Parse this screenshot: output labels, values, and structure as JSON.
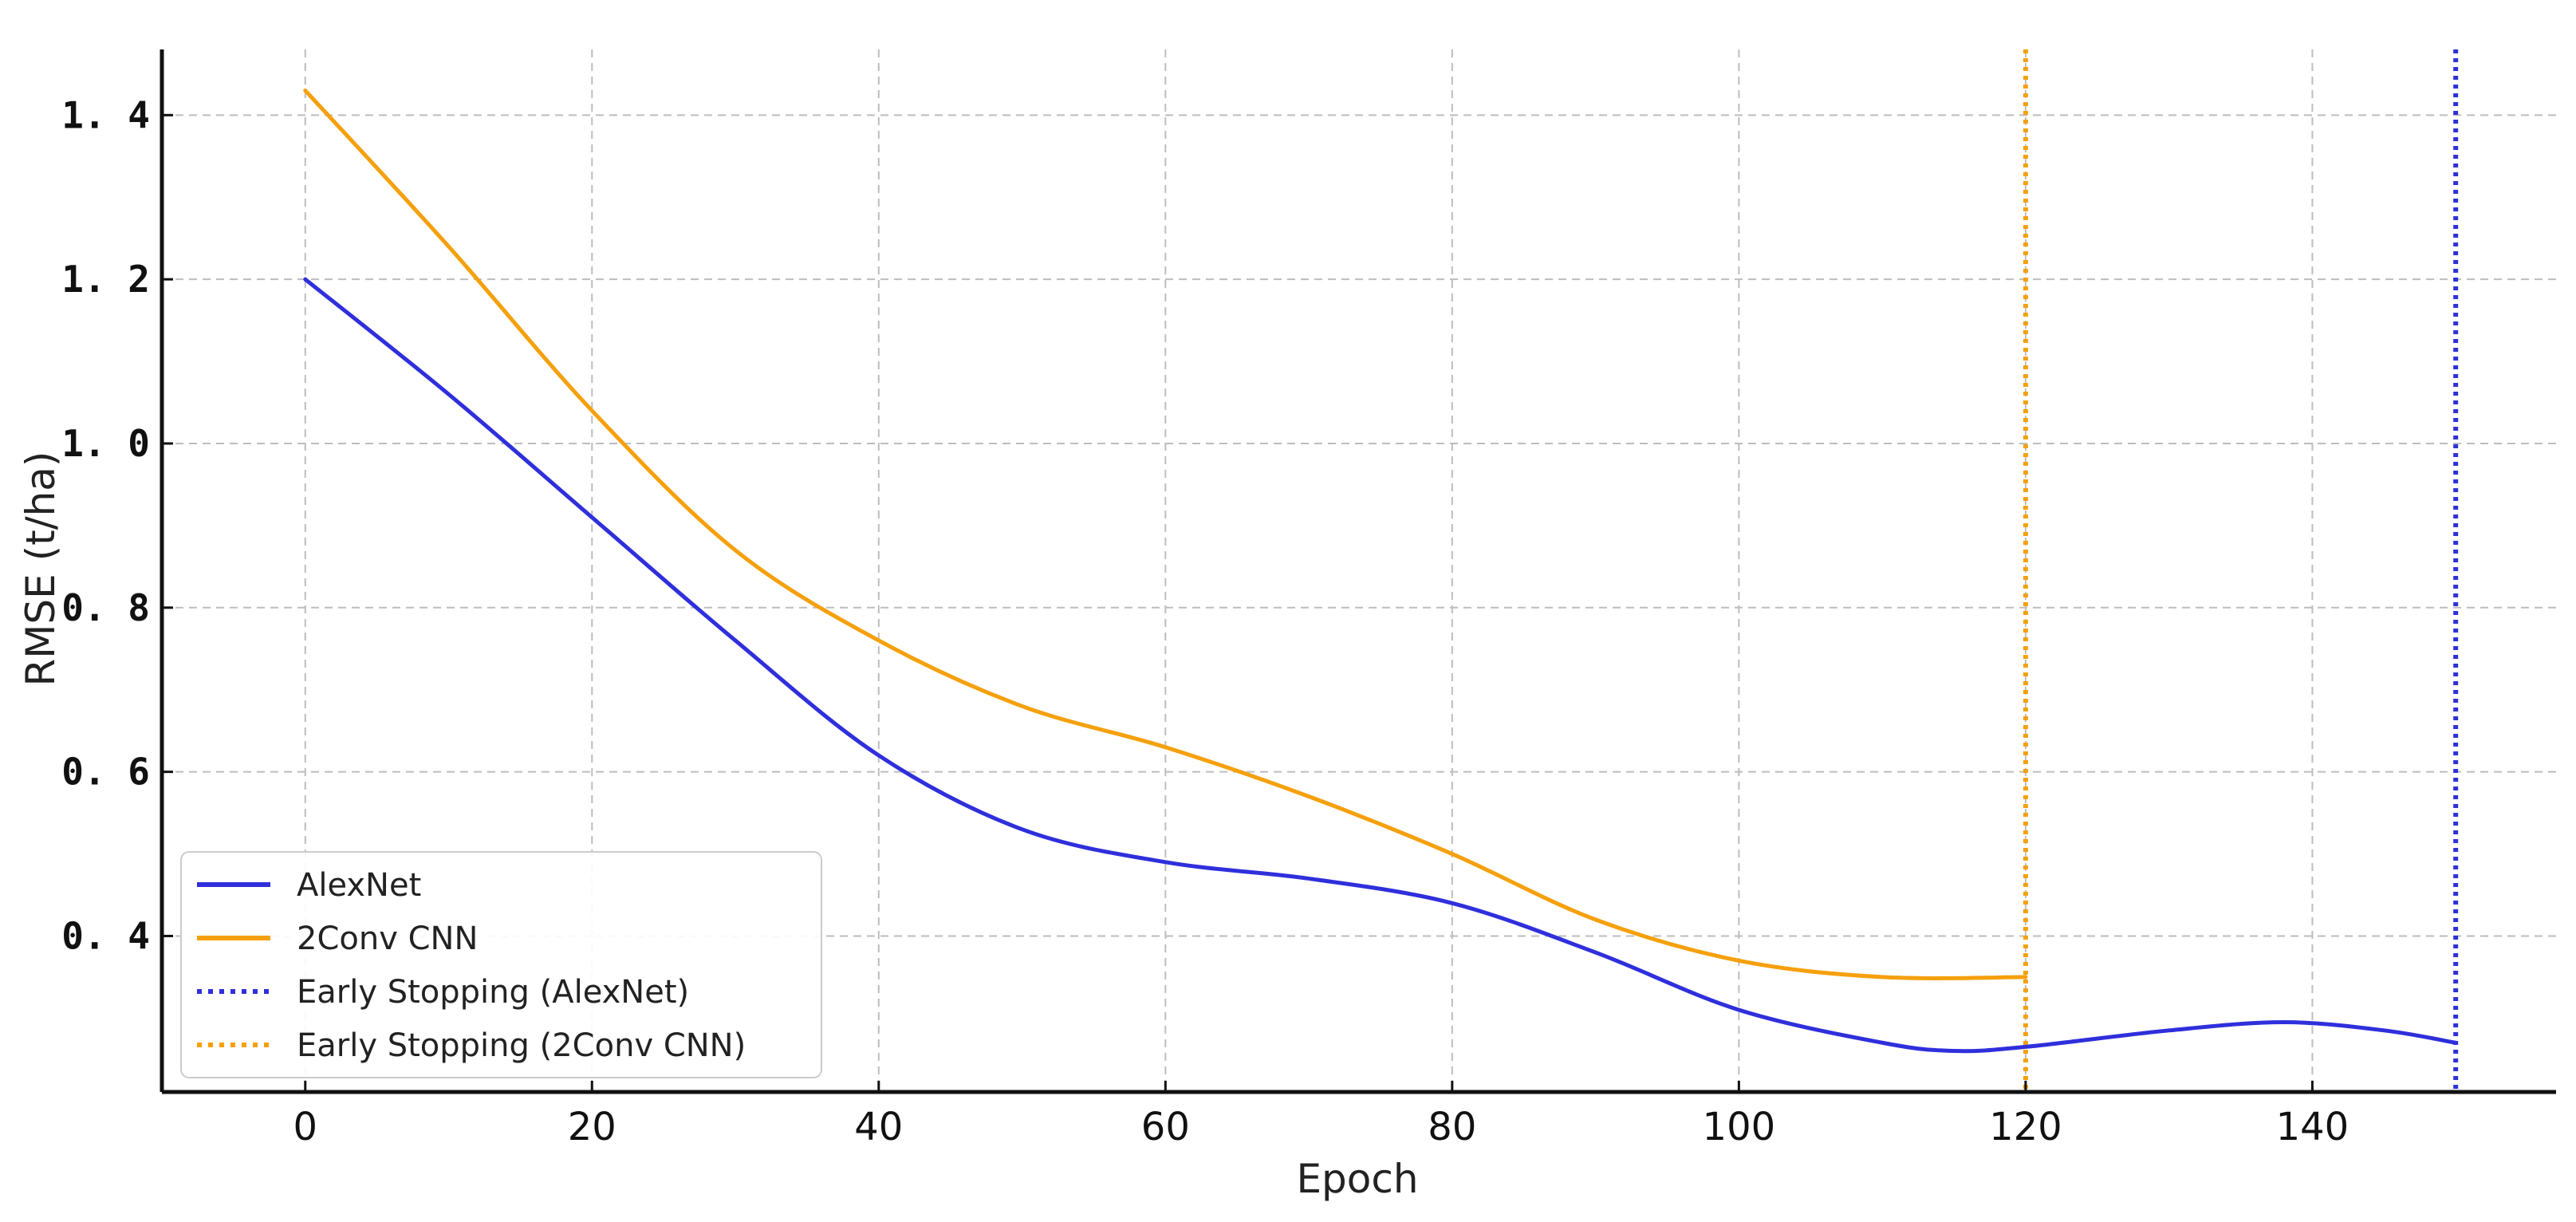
{
  "chart_data": {
    "type": "line",
    "xlabel": "Epoch",
    "ylabel": "RMSE (t/ha)",
    "xlim": [
      -10,
      157
    ],
    "ylim": [
      0.21,
      1.48
    ],
    "xticks": [
      0,
      20,
      40,
      60,
      80,
      100,
      120,
      140
    ],
    "xtick_labels": [
      "0",
      "20",
      "40",
      "60",
      "80",
      "100",
      "120",
      "140"
    ],
    "yticks": [
      0.4,
      0.6,
      0.8,
      1.0,
      1.2,
      1.4
    ],
    "ytick_labels": [
      "0. 4",
      "0. 6",
      "0. 8",
      "1. 0",
      "1. 2",
      "1. 4"
    ],
    "grid": true,
    "legend_position": "bottom-left",
    "series": [
      {
        "name": "AlexNet",
        "color": "#2f2fdc",
        "style": "solid",
        "x": [
          0,
          10,
          20,
          30,
          40,
          50,
          60,
          70,
          80,
          90,
          100,
          110,
          115,
          120,
          130,
          138,
          145,
          150
        ],
        "y": [
          1.2,
          1.06,
          0.91,
          0.76,
          0.62,
          0.53,
          0.49,
          0.47,
          0.44,
          0.38,
          0.31,
          0.27,
          0.26,
          0.265,
          0.285,
          0.295,
          0.285,
          0.27
        ]
      },
      {
        "name": "2Conv CNN",
        "color": "#f5a00c",
        "style": "solid",
        "x": [
          0,
          10,
          20,
          30,
          40,
          50,
          60,
          70,
          80,
          90,
          100,
          110,
          120
        ],
        "y": [
          1.43,
          1.24,
          1.04,
          0.87,
          0.76,
          0.68,
          0.63,
          0.57,
          0.5,
          0.42,
          0.37,
          0.35,
          0.35
        ]
      },
      {
        "name": "Early Stopping (AlexNet)",
        "color": "#2f2fdc",
        "style": "dotted",
        "vline_x": 150
      },
      {
        "name": "Early Stopping (2Conv CNN)",
        "color": "#f5a00c",
        "style": "dotted",
        "vline_x": 120
      }
    ]
  }
}
